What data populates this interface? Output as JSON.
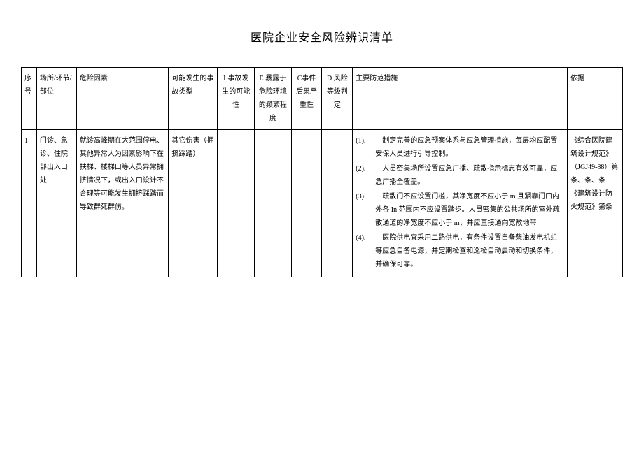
{
  "title": "医院企业安全风险辨识清单",
  "headers": {
    "seq": "序号",
    "place": "场所/环节/部位",
    "risk_factor": "危险因素",
    "accident_type": "可能发生的事故类型",
    "col_l": "L事故发生的可能性",
    "col_e": "E 暴露于危险环境的频繁程度",
    "col_c": "C事件后果严重性",
    "col_d": "D 风险等级判定",
    "measures": "主要防范措施",
    "basis": "依据"
  },
  "rows": [
    {
      "seq": "1",
      "place": "门诊、急诊、住院部出入口处",
      "risk_factor": "就诊高峰期在大范围停电、其他异常人为因素影响下在扶梯、楼梯口等人员异常拥挤情况下，或出入口设计不合理等可能发生拥挤踩踏而导致群死群伤。",
      "accident_type": "其它伤害（拥挤踩踏）",
      "col_l": "",
      "col_e": "",
      "col_c": "",
      "col_d": "",
      "measures": [
        {
          "num": "(1).",
          "text": "制定完善的应急预案体系与应急管理措施，每层均应配置安保人员进行引导控制。"
        },
        {
          "num": "(2).",
          "text": "人员密集场所设置应急广播、疏散指示标志有效可靠，应急广播全覆盖。"
        },
        {
          "num": "(3).",
          "text": "疏散门不应设置门槛，其净宽度不应小于 m 且紧靠门口内外各 In 范围内不应设置踏步。人员密集的公共场所的室外疏散通道的净宽度不应小于 m，并应直接通向宽敞地带"
        },
        {
          "num": "(4).",
          "text": "医院供电宜采用二路供电，有条件设置自备柴油发电机组等应急自备电源，并定期检查和巡检自动启动和切换条件，并确保可靠。"
        }
      ],
      "basis": "《综合医院建筑设计规范》（JGJ49-88）第条、条、条《建筑设计防火规范》第条"
    }
  ]
}
